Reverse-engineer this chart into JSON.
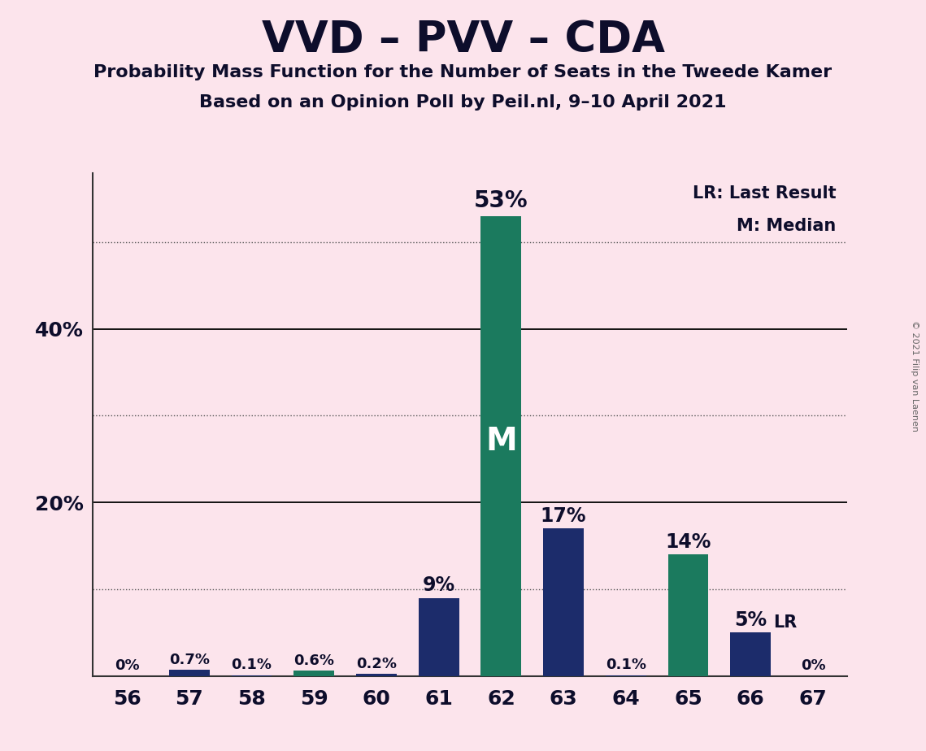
{
  "title": "VVD – PVV – CDA",
  "subtitle1": "Probability Mass Function for the Number of Seats in the Tweede Kamer",
  "subtitle2": "Based on an Opinion Poll by Peil.nl, 9–10 April 2021",
  "copyright": "© 2021 Filip van Laenen",
  "categories": [
    56,
    57,
    58,
    59,
    60,
    61,
    62,
    63,
    64,
    65,
    66,
    67
  ],
  "values": [
    0.0,
    0.7,
    0.1,
    0.6,
    0.2,
    9.0,
    53.0,
    17.0,
    0.1,
    14.0,
    5.0,
    0.0
  ],
  "labels": [
    "0%",
    "0.7%",
    "0.1%",
    "0.6%",
    "0.2%",
    "9%",
    "53%",
    "17%",
    "0.1%",
    "14%",
    "5%",
    "0%"
  ],
  "colors": [
    "#1c2c6b",
    "#1c2c6b",
    "#1c2c6b",
    "#1b7a5e",
    "#1c2c6b",
    "#1c2c6b",
    "#1b7a5e",
    "#1c2c6b",
    "#1c2c6b",
    "#1b7a5e",
    "#1c2c6b",
    "#1c2c6b"
  ],
  "median_bar_idx": 6,
  "lr_bar_idx": 10,
  "background_color": "#fce4ec",
  "title_color": "#0d0d2b",
  "annotation_color": "#0d0d2b",
  "ylim_max": 58,
  "grid_dotted": [
    10,
    30,
    50
  ],
  "grid_solid": [
    20,
    40
  ],
  "legend_text1": "LR: Last Result",
  "legend_text2": "M: Median",
  "ytick_positions": [
    20,
    40
  ],
  "ytick_labels": [
    "20%",
    "40%"
  ],
  "label_fontsize_small": 13,
  "label_fontsize_large": 17,
  "label_fontsize_peak": 20,
  "title_fontsize": 38,
  "subtitle_fontsize": 16,
  "tick_fontsize": 18,
  "legend_fontsize": 15,
  "M_fontsize": 28
}
